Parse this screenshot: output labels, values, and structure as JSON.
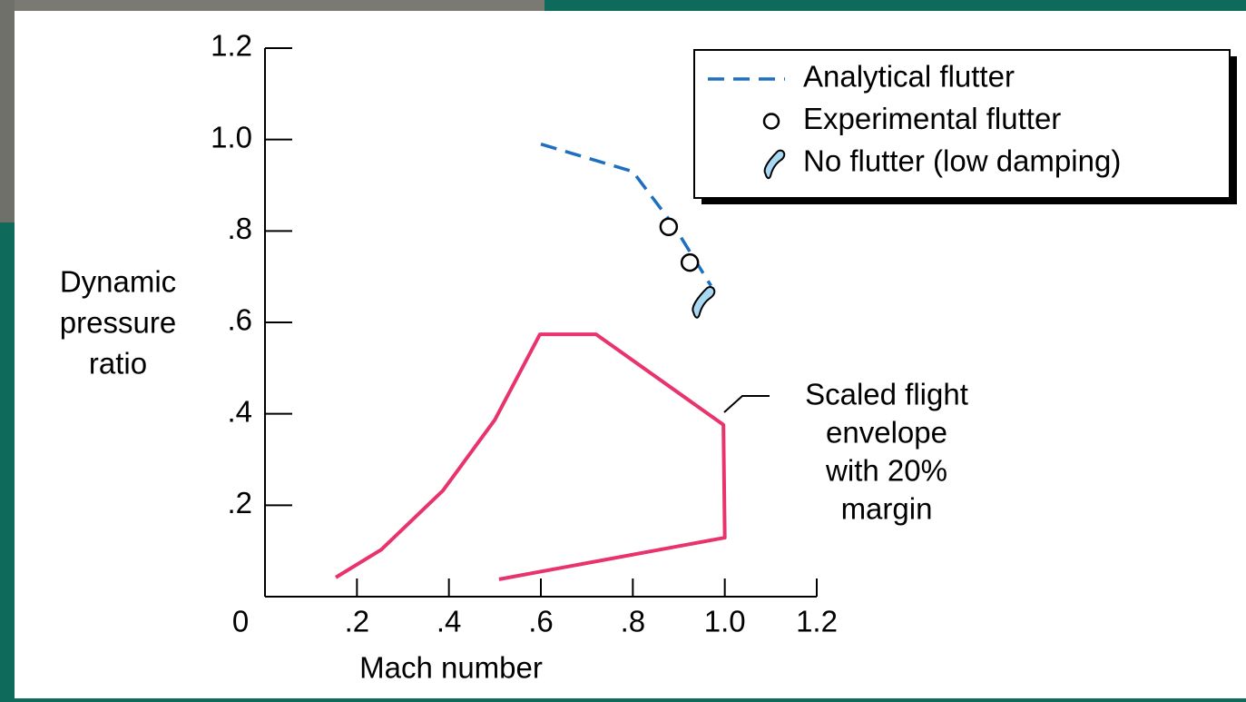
{
  "chart_data": {
    "type": "line",
    "xlabel": "Mach number",
    "ylabel_lines": [
      "Dynamic",
      "pressure",
      "ratio"
    ],
    "xlim": [
      0,
      1.2
    ],
    "ylim": [
      0,
      1.2
    ],
    "xticks": [
      0,
      {
        "value": 0.2,
        "label": ".2"
      },
      {
        "value": 0.4,
        "label": ".4"
      },
      {
        "value": 0.6,
        "label": ".6"
      },
      {
        "value": 0.8,
        "label": ".8"
      },
      {
        "value": 1.0,
        "label": "1.0"
      },
      1.2
    ],
    "yticks": [
      {
        "value": 0.2,
        "label": ".2"
      },
      {
        "value": 0.4,
        "label": ".4"
      },
      {
        "value": 0.6,
        "label": ".6"
      },
      {
        "value": 0.8,
        "label": ".8"
      },
      {
        "value": 1.0,
        "label": "1.0"
      },
      1.2
    ],
    "series": [
      {
        "name": "Analytical flutter",
        "label_color": "#ff1a1a",
        "color": "#1f6fc0",
        "style": "dashed",
        "x": [
          0.6,
          0.8,
          0.89,
          0.97
        ],
        "values": [
          0.99,
          0.93,
          0.81,
          0.68
        ]
      },
      {
        "name": "Experimental flutter",
        "label_color": "#ffee00",
        "color": "#000000",
        "style": "circle",
        "x": [
          0.878,
          0.924
        ],
        "values": [
          0.809,
          0.731
        ]
      },
      {
        "name": "No flutter (low damping)",
        "label_color": "#000000",
        "color": "#a9d8f2",
        "style": "blob",
        "x": [
          0.953
        ],
        "values": [
          0.646
        ]
      },
      {
        "color": "#e8336d",
        "style": "solid",
        "x": [
          0.154,
          0.253,
          0.387,
          0.5,
          0.598,
          0.72,
          0.997,
          1.0,
          0.509
        ],
        "values": [
          0.042,
          0.103,
          0.232,
          0.387,
          0.574,
          0.574,
          0.376,
          0.129,
          0.038
        ]
      }
    ],
    "annotation_lines": [
      "Scaled flight",
      "envelope",
      "with 20%",
      "margin"
    ]
  }
}
